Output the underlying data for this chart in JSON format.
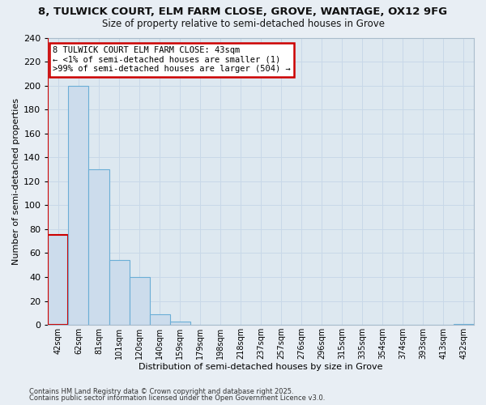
{
  "title1": "8, TULWICK COURT, ELM FARM CLOSE, GROVE, WANTAGE, OX12 9FG",
  "title2": "Size of property relative to semi-detached houses in Grove",
  "xlabel": "Distribution of semi-detached houses by size in Grove",
  "ylabel": "Number of semi-detached properties",
  "bar_labels": [
    "42sqm",
    "62sqm",
    "81sqm",
    "101sqm",
    "120sqm",
    "140sqm",
    "159sqm",
    "179sqm",
    "198sqm",
    "218sqm",
    "237sqm",
    "257sqm",
    "276sqm",
    "296sqm",
    "315sqm",
    "335sqm",
    "354sqm",
    "374sqm",
    "393sqm",
    "413sqm",
    "432sqm"
  ],
  "bar_heights": [
    75,
    200,
    130,
    54,
    40,
    9,
    3,
    0,
    0,
    0,
    0,
    0,
    0,
    0,
    0,
    0,
    0,
    0,
    0,
    0,
    1
  ],
  "bar_color": "#ccdcec",
  "bar_edge_color": "#6baed6",
  "highlight_bar_index": 0,
  "highlight_bar_edge_color": "#cc0000",
  "vline_color": "#cc0000",
  "ylim": [
    0,
    240
  ],
  "yticks": [
    0,
    20,
    40,
    60,
    80,
    100,
    120,
    140,
    160,
    180,
    200,
    220,
    240
  ],
  "annotation_title": "8 TULWICK COURT ELM FARM CLOSE: 43sqm",
  "annotation_line1": "← <1% of semi-detached houses are smaller (1)",
  "annotation_line2": ">99% of semi-detached houses are larger (504) →",
  "annotation_box_color": "#ffffff",
  "annotation_box_edge_color": "#cc0000",
  "grid_color": "#c8d8e8",
  "bg_color": "#dde8f0",
  "fig_bg_color": "#e8eef4",
  "footer1": "Contains HM Land Registry data © Crown copyright and database right 2025.",
  "footer2": "Contains public sector information licensed under the Open Government Licence v3.0."
}
